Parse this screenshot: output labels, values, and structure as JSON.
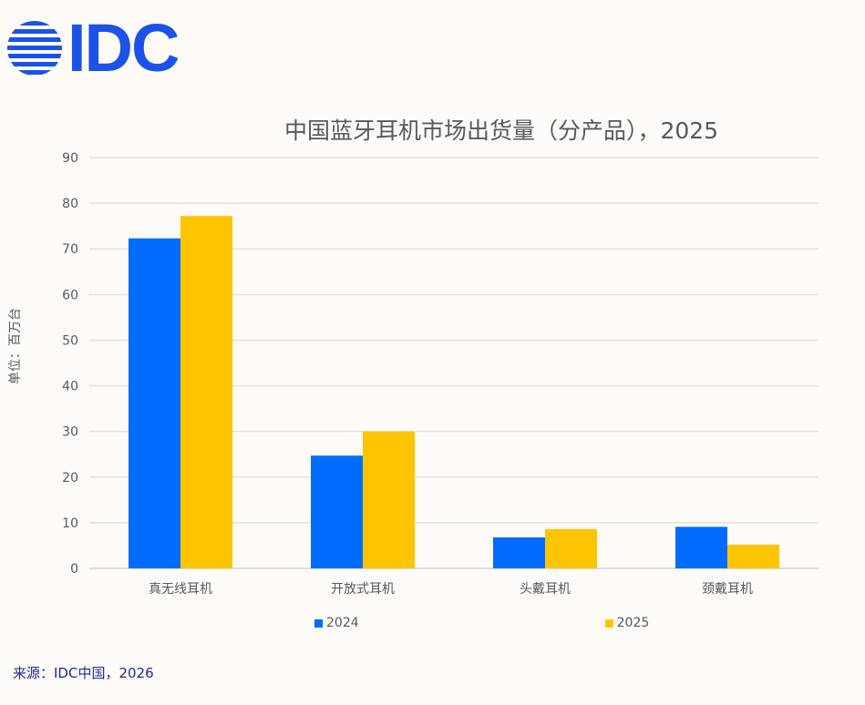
{
  "logo": {
    "text": "IDC",
    "color": "#1a52ea"
  },
  "source": "来源：IDC中国，2026",
  "chart_data": {
    "type": "bar",
    "title": "中国蓝牙耳机市场出货量（分产品），2025",
    "ylabel": "单位：百万台",
    "xlabel": "",
    "categories": [
      "真无线耳机",
      "开放式耳机",
      "头戴耳机",
      "颈戴耳机"
    ],
    "series": [
      {
        "name": "2024",
        "values": [
          72.3,
          24.7,
          6.8,
          9.1
        ],
        "color": "#006cff"
      },
      {
        "name": "2025",
        "values": [
          77.2,
          30.0,
          8.6,
          5.2
        ],
        "color": "#ffc400"
      }
    ],
    "ylim": [
      0,
      90
    ],
    "yticks": [
      0,
      10,
      20,
      30,
      40,
      50,
      60,
      70,
      80,
      90
    ],
    "grid": true,
    "legend": "bottom"
  }
}
